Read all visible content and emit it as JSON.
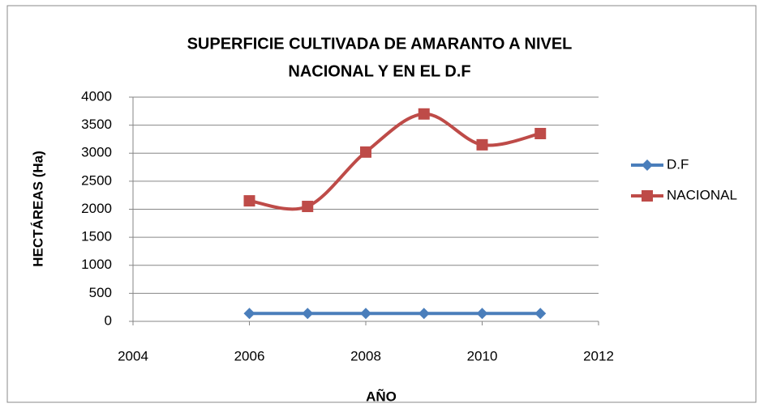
{
  "chart_data": {
    "type": "line",
    "title": [
      "SUPERFICIE CULTIVADA DE AMARANTO A NIVEL",
      "NACIONAL Y EN EL D.F"
    ],
    "x_label": "AÑO",
    "y_label": "HECTÁREAS (Ha)",
    "x": [
      2006,
      2007,
      2008,
      2009,
      2010,
      2011
    ],
    "series": [
      {
        "name": "D.F",
        "color": "#4a7ebb",
        "marker": "diamond",
        "values": [
          140,
          140,
          140,
          140,
          140,
          140
        ]
      },
      {
        "name": "NACIONAL",
        "color": "#be4b48",
        "marker": "square",
        "values": [
          2150,
          2050,
          3020,
          3700,
          3150,
          3350
        ]
      }
    ],
    "xlim": [
      2004,
      2012
    ],
    "xticks": [
      2004,
      2006,
      2008,
      2010,
      2012
    ],
    "ylim": [
      0,
      4000
    ],
    "yticks": [
      0,
      500,
      1000,
      1500,
      2000,
      2500,
      3000,
      3500,
      4000
    ],
    "grid": true,
    "smooth": true,
    "legend": "right"
  }
}
